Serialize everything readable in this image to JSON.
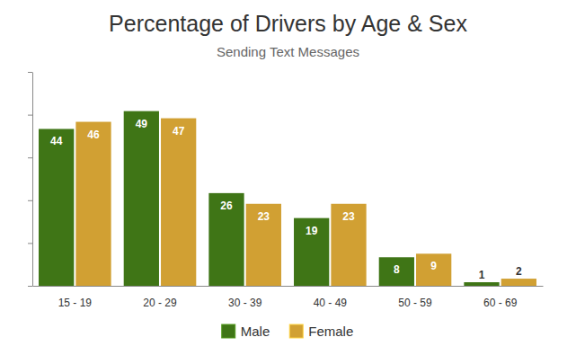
{
  "chart_data": {
    "type": "bar",
    "title": "Percentage of Drivers by Age & Sex",
    "subtitle": "Sending Text Messages",
    "categories": [
      "15 - 19",
      "20 - 29",
      "30 - 39",
      "40 - 49",
      "50 - 59",
      "60 - 69"
    ],
    "series": [
      {
        "name": "Male",
        "color": "#3f7516",
        "values": [
          44,
          49,
          26,
          19,
          8,
          1
        ]
      },
      {
        "name": "Female",
        "color": "#d1a033",
        "values": [
          46,
          47,
          23,
          23,
          9,
          2
        ]
      }
    ],
    "ylim": [
      0,
      60
    ],
    "yticks": [
      0,
      12,
      24,
      36,
      48,
      60
    ],
    "grid": false,
    "legend": "bottom",
    "data_labels": true,
    "tick_labels": "x"
  }
}
